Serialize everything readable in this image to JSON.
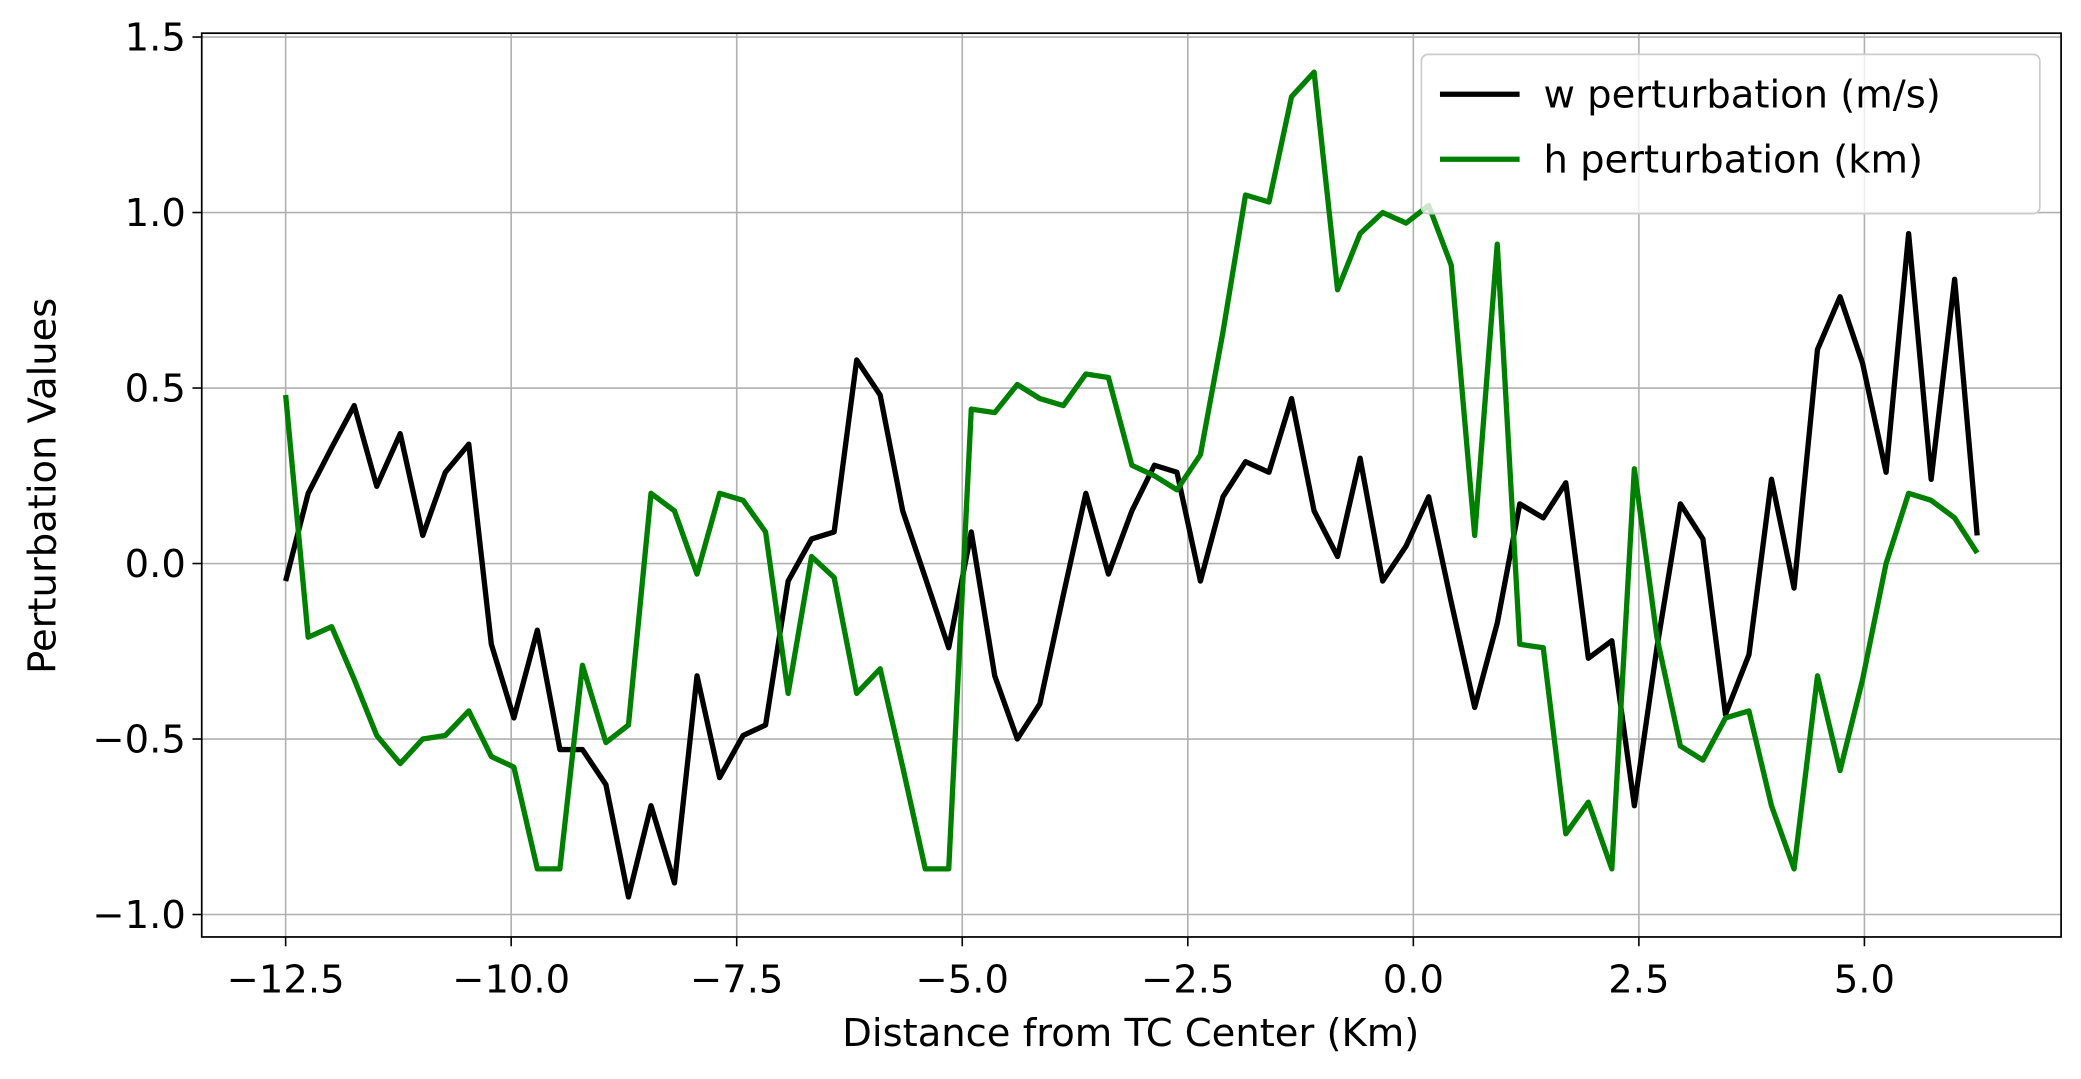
{
  "chart_data": {
    "type": "line",
    "xlabel": "Distance from TC Center (Km)",
    "ylabel": "Perturbation Values",
    "x": [
      -12.5,
      -12.25,
      -11.99,
      -11.74,
      -11.49,
      -11.23,
      -10.98,
      -10.73,
      -10.47,
      -10.22,
      -9.97,
      -9.71,
      -9.46,
      -9.21,
      -8.95,
      -8.7,
      -8.45,
      -8.19,
      -7.94,
      -7.69,
      -7.43,
      -7.18,
      -6.93,
      -6.67,
      -6.42,
      -6.17,
      -5.91,
      -5.66,
      -5.41,
      -5.15,
      -4.9,
      -4.64,
      -4.39,
      -4.14,
      -3.88,
      -3.63,
      -3.38,
      -3.12,
      -2.87,
      -2.62,
      -2.36,
      -2.11,
      -1.86,
      -1.6,
      -1.35,
      -1.1,
      -0.84,
      -0.59,
      -0.34,
      -0.08,
      0.17,
      0.42,
      0.68,
      0.93,
      1.18,
      1.44,
      1.69,
      1.94,
      2.2,
      2.45,
      2.7,
      2.96,
      3.21,
      3.46,
      3.72,
      3.97,
      4.22,
      4.48,
      4.73,
      4.98,
      5.24,
      5.49,
      5.74,
      6.0,
      6.25
    ],
    "series": [
      {
        "name": "w perturbation (m/s)",
        "color": "#000000",
        "values": [
          -0.05,
          0.2,
          0.33,
          0.45,
          0.22,
          0.37,
          0.08,
          0.26,
          0.34,
          -0.23,
          -0.44,
          -0.19,
          -0.53,
          -0.53,
          -0.63,
          -0.95,
          -0.69,
          -0.91,
          -0.32,
          -0.61,
          -0.49,
          -0.46,
          -0.05,
          0.07,
          0.09,
          0.58,
          0.48,
          0.15,
          -0.04,
          -0.24,
          0.09,
          -0.32,
          -0.5,
          -0.4,
          -0.09,
          0.2,
          -0.03,
          0.15,
          0.28,
          0.26,
          -0.05,
          0.19,
          0.29,
          0.26,
          0.47,
          0.15,
          0.02,
          0.3,
          -0.05,
          0.05,
          0.19,
          -0.11,
          -0.41,
          -0.17,
          0.17,
          0.13,
          0.23,
          -0.27,
          -0.22,
          -0.69,
          -0.24,
          0.17,
          0.07,
          -0.43,
          -0.26,
          0.24,
          -0.07,
          0.61,
          0.76,
          0.57,
          0.26,
          0.94,
          0.24,
          0.81,
          0.08
        ]
      },
      {
        "name": "h perturbation (km)",
        "color": "#008000",
        "values": [
          0.48,
          -0.21,
          -0.18,
          -0.33,
          -0.49,
          -0.57,
          -0.5,
          -0.49,
          -0.42,
          -0.55,
          -0.58,
          -0.87,
          -0.87,
          -0.29,
          -0.51,
          -0.46,
          0.2,
          0.15,
          -0.03,
          0.2,
          0.18,
          0.09,
          -0.37,
          0.02,
          -0.04,
          -0.37,
          -0.3,
          -0.58,
          -0.87,
          -0.87,
          0.44,
          0.43,
          0.51,
          0.47,
          0.45,
          0.54,
          0.53,
          0.28,
          0.25,
          0.21,
          0.31,
          0.66,
          1.05,
          1.03,
          1.33,
          1.4,
          0.78,
          0.94,
          1.0,
          0.97,
          1.02,
          0.85,
          0.08,
          0.91,
          -0.23,
          -0.24,
          -0.77,
          -0.68,
          -0.87,
          0.27,
          -0.21,
          -0.52,
          -0.56,
          -0.44,
          -0.42,
          -0.69,
          -0.87,
          -0.32,
          -0.59,
          -0.33,
          0.0,
          0.2,
          0.18,
          0.13,
          0.03
        ]
      }
    ],
    "xlim": [
      -13.43,
      7.18
    ],
    "ylim": [
      -1.064,
      1.511
    ],
    "xticks": [
      {
        "value": -12.5,
        "label": "−12.5"
      },
      {
        "value": -10,
        "label": "−10.0"
      },
      {
        "value": -7.5,
        "label": "−7.5"
      },
      {
        "value": -5,
        "label": "−5.0"
      },
      {
        "value": -2.5,
        "label": "−2.5"
      },
      {
        "value": 0,
        "label": "0.0"
      },
      2.5,
      {
        "value": 5,
        "label": "5.0"
      }
    ],
    "yticks": [
      {
        "value": -1,
        "label": "−1.0"
      },
      {
        "value": -0.5,
        "label": "−0.5"
      },
      {
        "value": 0,
        "label": "0.0"
      },
      0.5,
      {
        "value": 1,
        "label": "1.0"
      },
      1.5
    ],
    "grid": true,
    "legend": "upper right"
  }
}
